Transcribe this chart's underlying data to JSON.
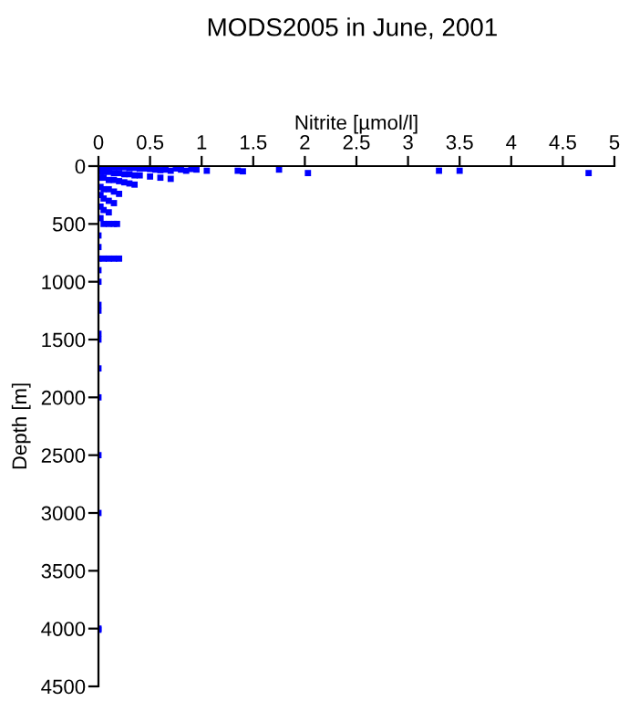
{
  "chart_data": {
    "type": "scatter",
    "title": "MODS2005 in June, 2001",
    "xlabel": "Nitrite [µmol/l]",
    "ylabel": "Depth [m]",
    "xlim": [
      0,
      5
    ],
    "xticks": [
      0,
      0.5,
      1,
      1.5,
      2,
      2.5,
      3,
      3.5,
      4,
      4.5,
      5
    ],
    "ylim": [
      4500,
      0
    ],
    "yticks": [
      0,
      500,
      1000,
      1500,
      2000,
      2500,
      3000,
      3500,
      4000,
      4500
    ],
    "grid": false,
    "marker": "square",
    "series": [
      {
        "color": "#0000ff",
        "x": [
          0.02,
          0.05,
          0.1,
          0.15,
          0.2,
          0.25,
          0.3,
          0.35,
          0.4,
          0.45,
          0.5,
          0.55,
          0.6,
          0.65,
          0.7,
          0.75,
          0.8,
          0.85,
          0.9,
          0.95,
          1.05,
          1.35,
          1.4,
          1.75,
          2.03,
          3.3,
          3.5,
          4.75,
          0.02,
          0.05,
          0.1,
          0.15,
          0.2,
          0.25,
          0.3,
          0.35,
          0.4,
          0.5,
          0.6,
          0.7,
          0.02,
          0.05,
          0.1,
          0.15,
          0.2,
          0.25,
          0.3,
          0.35,
          0.02,
          0.05,
          0.1,
          0.15,
          0.2,
          0.02,
          0.05,
          0.1,
          0.15,
          0.02,
          0.05,
          0.1,
          0.02,
          0.05,
          0.1,
          0.15,
          0.18,
          0.0,
          0.0,
          0.0,
          0.05,
          0.1,
          0.15,
          0.2,
          0.0,
          0.0,
          0.0,
          0.0,
          0.0,
          0.0,
          0.0,
          0.0,
          0.0,
          0.0,
          0.0,
          0.0
        ],
        "values": [
          10,
          10,
          10,
          10,
          10,
          10,
          15,
          15,
          20,
          20,
          25,
          30,
          35,
          30,
          40,
          20,
          30,
          40,
          25,
          30,
          40,
          40,
          45,
          30,
          60,
          40,
          40,
          60,
          50,
          50,
          50,
          60,
          60,
          70,
          70,
          80,
          80,
          90,
          100,
          110,
          100,
          100,
          120,
          120,
          130,
          140,
          150,
          160,
          180,
          200,
          200,
          220,
          240,
          250,
          280,
          300,
          320,
          350,
          380,
          400,
          450,
          500,
          500,
          500,
          500,
          600,
          700,
          800,
          800,
          800,
          800,
          800,
          900,
          1000,
          1200,
          1250,
          1450,
          1500,
          1750,
          2000,
          2500,
          3000,
          4000,
          4010
        ]
      }
    ]
  }
}
